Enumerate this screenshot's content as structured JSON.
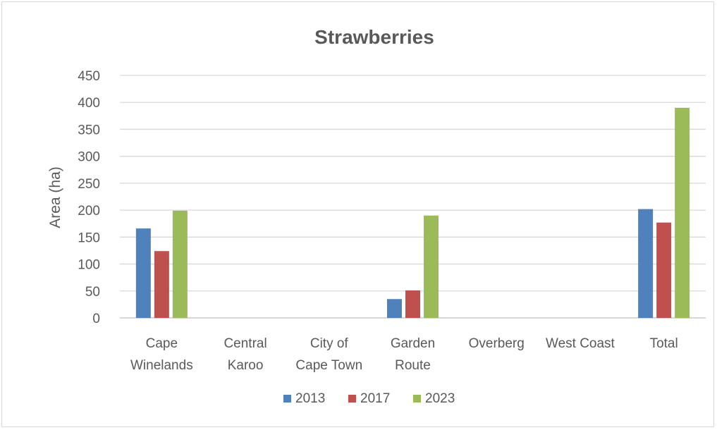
{
  "chart_data": {
    "type": "bar",
    "title": "Strawberries",
    "xlabel": "",
    "ylabel": "Area (ha)",
    "ylim": [
      0,
      450
    ],
    "yticks": [
      0,
      50,
      100,
      150,
      200,
      250,
      300,
      350,
      400,
      450
    ],
    "grid": true,
    "legend_position": "bottom",
    "categories": [
      [
        "Cape",
        "Winelands"
      ],
      [
        "Central",
        "Karoo"
      ],
      [
        "City of",
        "Cape Town"
      ],
      [
        "Garden",
        "Route"
      ],
      [
        "Overberg"
      ],
      [
        "West Coast"
      ],
      [
        "Total"
      ]
    ],
    "series": [
      {
        "name": "2013",
        "color": "#4f81bd",
        "values": [
          166,
          0,
          0,
          35,
          0,
          0,
          202
        ]
      },
      {
        "name": "2017",
        "color": "#c0504d",
        "values": [
          124,
          0,
          0,
          51,
          0,
          0,
          177
        ]
      },
      {
        "name": "2023",
        "color": "#9bbb59",
        "values": [
          199,
          0,
          0,
          190,
          0,
          0,
          390
        ]
      }
    ]
  }
}
